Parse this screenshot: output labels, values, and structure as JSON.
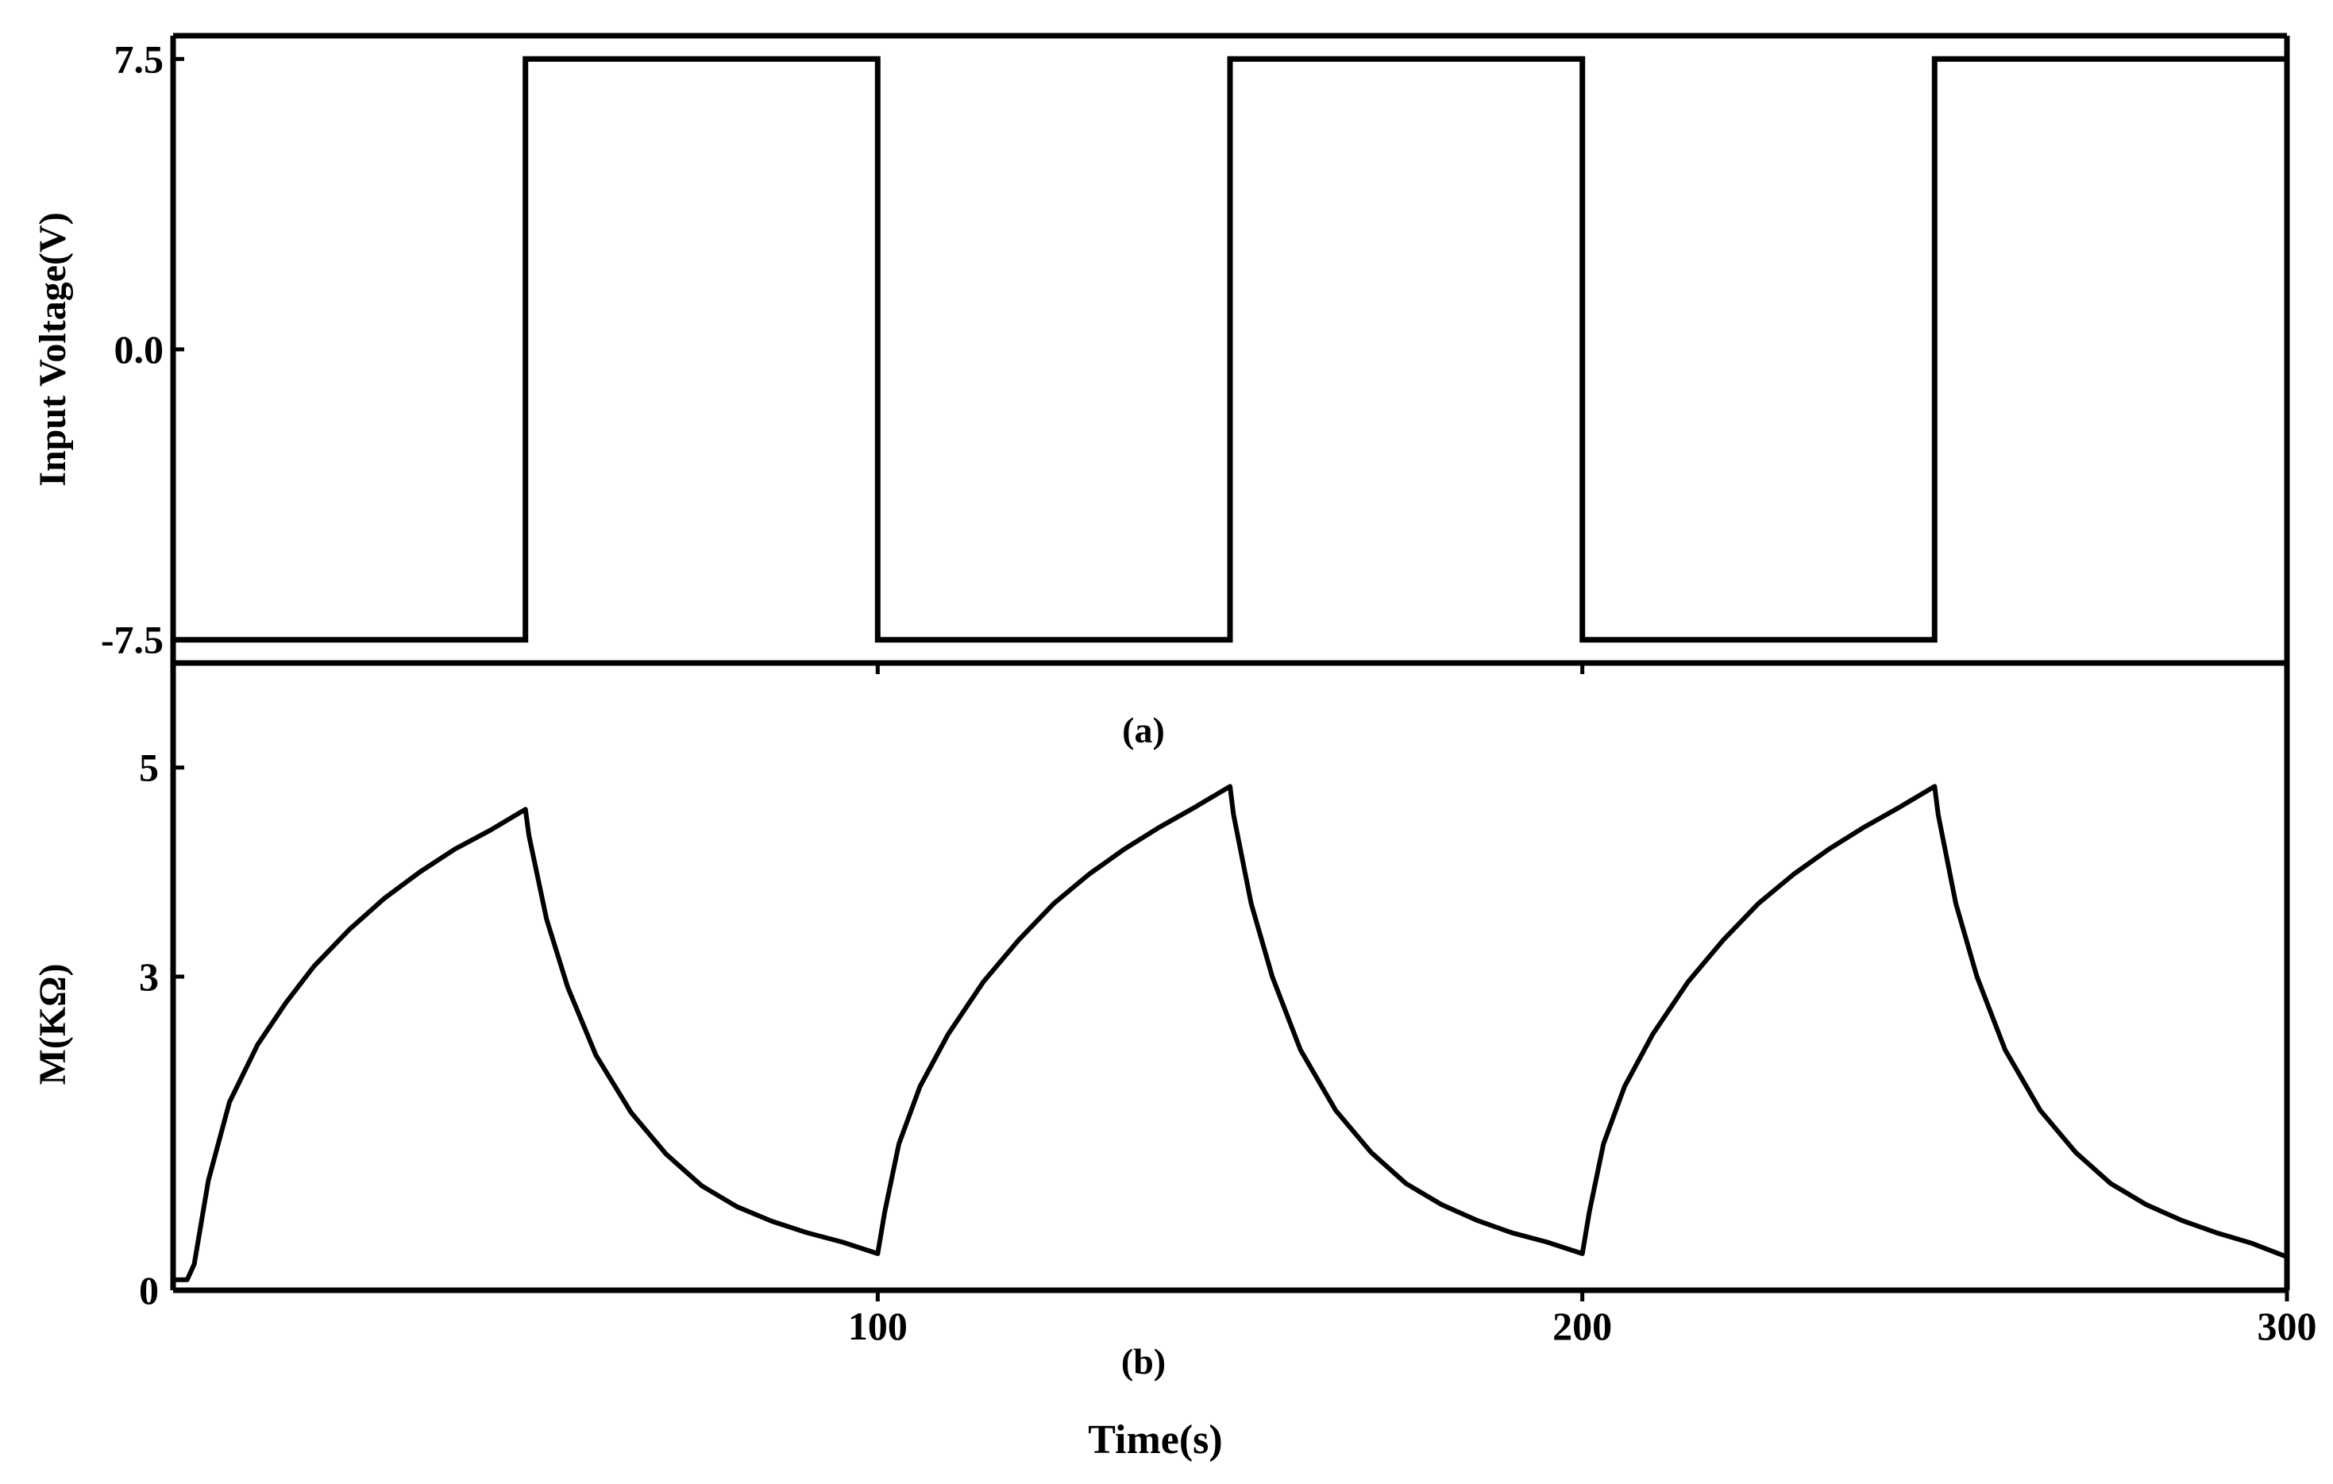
{
  "chart_data": [
    {
      "type": "line",
      "panel_label": "(a)",
      "ylabel": "Input Voltage(V)",
      "xlim": [
        0,
        300
      ],
      "ylim": [
        -8.1,
        8.1
      ],
      "yticks": [
        {
          "value": 7.5,
          "label": "7.5"
        },
        {
          "value": 0.0,
          "label": "0.0"
        },
        {
          "value": -7.5,
          "label": "-7.5"
        }
      ],
      "series": [
        {
          "x": [
            0,
            50,
            50,
            100,
            100,
            150,
            150,
            200,
            200,
            250,
            250,
            300
          ],
          "values": [
            -7.5,
            -7.5,
            7.5,
            7.5,
            -7.5,
            -7.5,
            7.5,
            7.5,
            -7.5,
            -7.5,
            7.5,
            7.5
          ]
        }
      ],
      "grid": false,
      "color": "#000000"
    },
    {
      "type": "line",
      "panel_label": "(b)",
      "xlabel": "Time(s)",
      "ylabel": "M(KΩ)",
      "xlim": [
        0,
        300
      ],
      "ylim": [
        0,
        6
      ],
      "yticks": [
        {
          "value": 5,
          "label": "5"
        },
        {
          "value": 3,
          "label": "3"
        },
        {
          "value": 0,
          "label": "0"
        }
      ],
      "xticks": [
        {
          "value": 100,
          "label": "100"
        },
        {
          "value": 200,
          "label": "200"
        },
        {
          "value": 300,
          "label": "300"
        }
      ],
      "series": [
        {
          "x": [
            0,
            2,
            3,
            5,
            8,
            12,
            16,
            20,
            25,
            30,
            35,
            40,
            45,
            50,
            50.5,
            53,
            56,
            60,
            65,
            70,
            75,
            80,
            85,
            90,
            95,
            100,
            101,
            103,
            106,
            110,
            115,
            120,
            125,
            130,
            135,
            140,
            145,
            150,
            150.5,
            153,
            156,
            160,
            165,
            170,
            175,
            180,
            185,
            190,
            195,
            200,
            201,
            203,
            206,
            210,
            215,
            220,
            225,
            230,
            235,
            240,
            245,
            250,
            250.5,
            253,
            256,
            260,
            265,
            270,
            275,
            280,
            285,
            290,
            295,
            300
          ],
          "values": [
            0.1,
            0.1,
            0.25,
            1.05,
            1.8,
            2.35,
            2.75,
            3.1,
            3.45,
            3.75,
            4.0,
            4.22,
            4.4,
            4.6,
            4.35,
            3.55,
            2.9,
            2.25,
            1.7,
            1.3,
            1.0,
            0.8,
            0.66,
            0.55,
            0.46,
            0.35,
            0.75,
            1.4,
            1.95,
            2.45,
            2.95,
            3.35,
            3.7,
            3.98,
            4.22,
            4.43,
            4.62,
            4.82,
            4.55,
            3.7,
            3.0,
            2.3,
            1.72,
            1.32,
            1.02,
            0.82,
            0.67,
            0.55,
            0.46,
            0.35,
            0.75,
            1.4,
            1.95,
            2.45,
            2.95,
            3.35,
            3.7,
            3.98,
            4.22,
            4.43,
            4.62,
            4.82,
            4.55,
            3.7,
            3.0,
            2.3,
            1.72,
            1.32,
            1.02,
            0.82,
            0.67,
            0.55,
            0.45,
            0.32
          ]
        }
      ],
      "grid": false,
      "color": "#000000"
    }
  ]
}
